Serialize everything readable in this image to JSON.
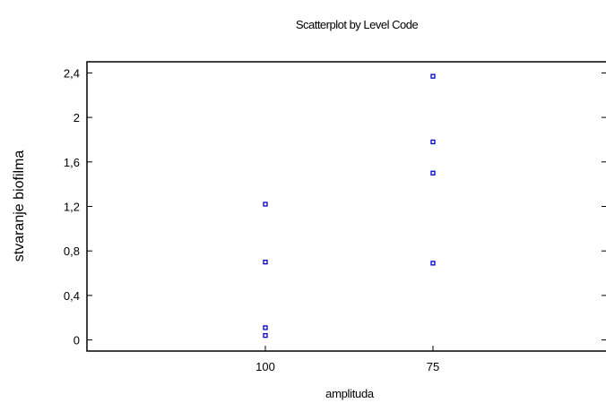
{
  "chart_data": {
    "type": "scatter",
    "title": "Scatterplot by Level Code",
    "xlabel": "amplituda",
    "ylabel": "stvaranje biofilma",
    "categories": [
      "100",
      "75"
    ],
    "ylim": [
      -0.1,
      2.5
    ],
    "yticks": [
      0,
      0.4,
      0.8,
      1.2,
      1.6,
      2,
      2.4
    ],
    "ytick_labels": [
      "0",
      "0,4",
      "0,8",
      "1,2",
      "1,6",
      "2",
      "2,4"
    ],
    "grid": false,
    "marker_color": "#0000cc",
    "points": [
      {
        "category": "100",
        "y": 1.22
      },
      {
        "category": "100",
        "y": 0.7
      },
      {
        "category": "100",
        "y": 0.11
      },
      {
        "category": "100",
        "y": 0.04
      },
      {
        "category": "75",
        "y": 2.37
      },
      {
        "category": "75",
        "y": 1.78
      },
      {
        "category": "75",
        "y": 1.5
      },
      {
        "category": "75",
        "y": 0.69
      }
    ]
  }
}
